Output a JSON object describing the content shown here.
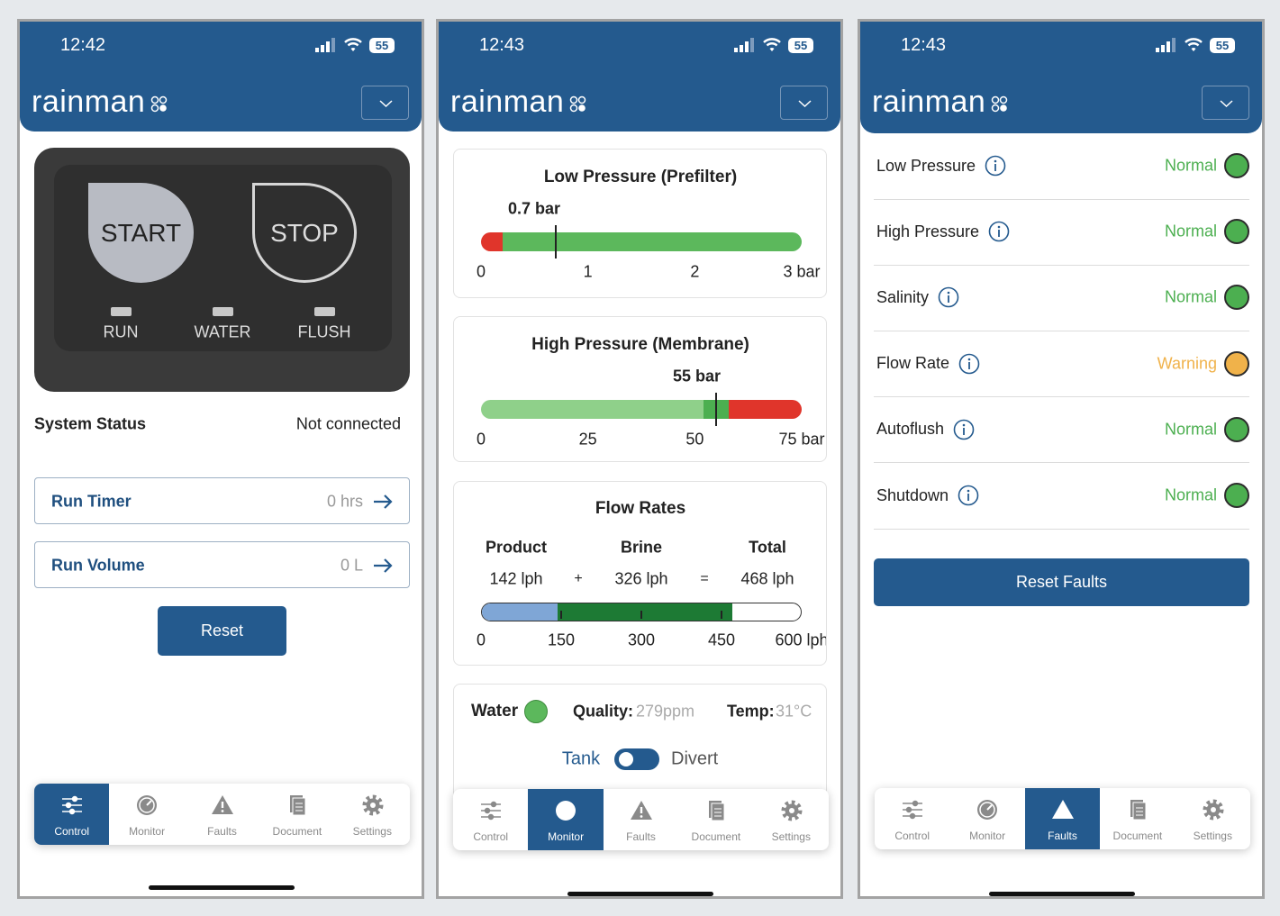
{
  "brand": "rainman",
  "nav_items": [
    "Control",
    "Monitor",
    "Faults",
    "Document",
    "Settings"
  ],
  "screens": [
    {
      "time": "12:42",
      "battery": "55",
      "active_tab": 0,
      "control": {
        "start": "START",
        "stop": "STOP",
        "indicators": [
          "RUN",
          "WATER",
          "FLUSH"
        ]
      },
      "system_status": {
        "label": "System Status",
        "value": "Not connected"
      },
      "counters": [
        {
          "label": "Run Timer",
          "value": "0 hrs"
        },
        {
          "label": "Run Volume",
          "value": "0 L"
        }
      ],
      "reset_button": "Reset"
    },
    {
      "time": "12:43",
      "battery": "55",
      "active_tab": 1,
      "gauges": [
        {
          "title": "Low Pressure (Prefilter)",
          "value": 0.7,
          "value_label": "0.7 bar",
          "lim": [
            0,
            3
          ],
          "ticks": [
            0,
            1,
            2,
            {
              "value": 3,
              "label": "3 bar"
            }
          ],
          "zones": [
            {
              "from": 0,
              "to": 0.2,
              "color": "#e0352b"
            },
            {
              "from": 0.2,
              "to": 3,
              "color": "#5cb85c"
            }
          ]
        },
        {
          "title": "High Pressure (Membrane)",
          "value": 55,
          "value_label": "55 bar",
          "lim": [
            0,
            75
          ],
          "ticks": [
            0,
            25,
            50,
            {
              "value": 75,
              "label": "75 bar"
            }
          ],
          "zones": [
            {
              "from": 0,
              "to": 52,
              "color": "#8fd08a"
            },
            {
              "from": 52,
              "to": 58,
              "color": "#4caf50"
            },
            {
              "from": 58,
              "to": 75,
              "color": "#e0352b"
            }
          ]
        }
      ],
      "flow": {
        "title": "Flow Rates",
        "lim": [
          0,
          600
        ],
        "ticks": [
          0,
          150,
          300,
          450,
          {
            "value": 600,
            "label": "600 lph"
          }
        ],
        "series": [
          {
            "name": "Product",
            "value": 142,
            "value_label": "142 lph",
            "color": "#7fa6d6"
          },
          {
            "name": "Brine",
            "value": 326,
            "value_label": "326 lph",
            "color": "#1d7a34"
          }
        ],
        "operators": [
          "+",
          "="
        ],
        "total": {
          "name": "Total",
          "label": "468 lph"
        }
      },
      "water": {
        "label": "Water",
        "quality_label": "Quality:",
        "quality": "279ppm",
        "temp_label": "Temp:",
        "temp": "31°C",
        "toggle_left": "Tank",
        "toggle_right": "Divert"
      }
    },
    {
      "time": "12:43",
      "battery": "55",
      "active_tab": 2,
      "faults": [
        {
          "name": "Low Pressure",
          "status": "Normal",
          "color": "#4caf50"
        },
        {
          "name": "High Pressure",
          "status": "Normal",
          "color": "#4caf50"
        },
        {
          "name": "Salinity",
          "status": "Normal",
          "color": "#4caf50"
        },
        {
          "name": "Flow Rate",
          "status": "Warning",
          "color": "#f0b24a"
        },
        {
          "name": "Autoflush",
          "status": "Normal",
          "color": "#4caf50"
        },
        {
          "name": "Shutdown",
          "status": "Normal",
          "color": "#4caf50"
        }
      ],
      "reset_button": "Reset Faults"
    }
  ]
}
